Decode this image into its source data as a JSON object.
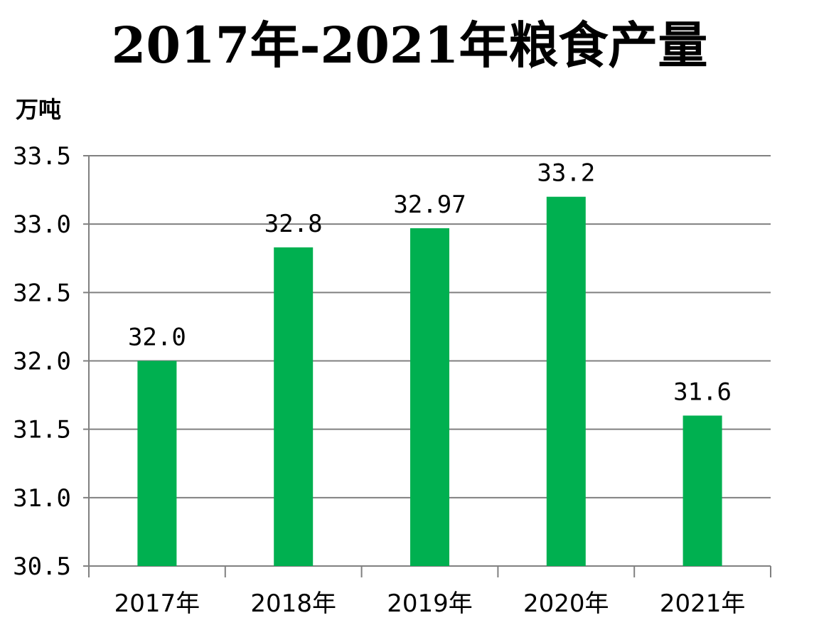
{
  "chart_data": {
    "type": "bar",
    "title": "2017年-2021年粮食产量",
    "ylabel": "万吨",
    "xlabel": "",
    "categories": [
      "2017年",
      "2018年",
      "2019年",
      "2020年",
      "2021年"
    ],
    "values": [
      32.0,
      32.83,
      32.97,
      33.2,
      31.6
    ],
    "value_labels": [
      "32.0",
      "32.8",
      "32.97",
      "33.2",
      "31.6"
    ],
    "ylim": [
      30.5,
      33.5
    ],
    "yticks": [
      30.5,
      31.0,
      31.5,
      32.0,
      32.5,
      33.0,
      33.5
    ],
    "ytick_labels": [
      "30.5",
      "31.0",
      "31.5",
      "32.0",
      "32.5",
      "33.0",
      "33.5"
    ],
    "grid": true,
    "legend": "none",
    "bar_color": "#00B050"
  }
}
